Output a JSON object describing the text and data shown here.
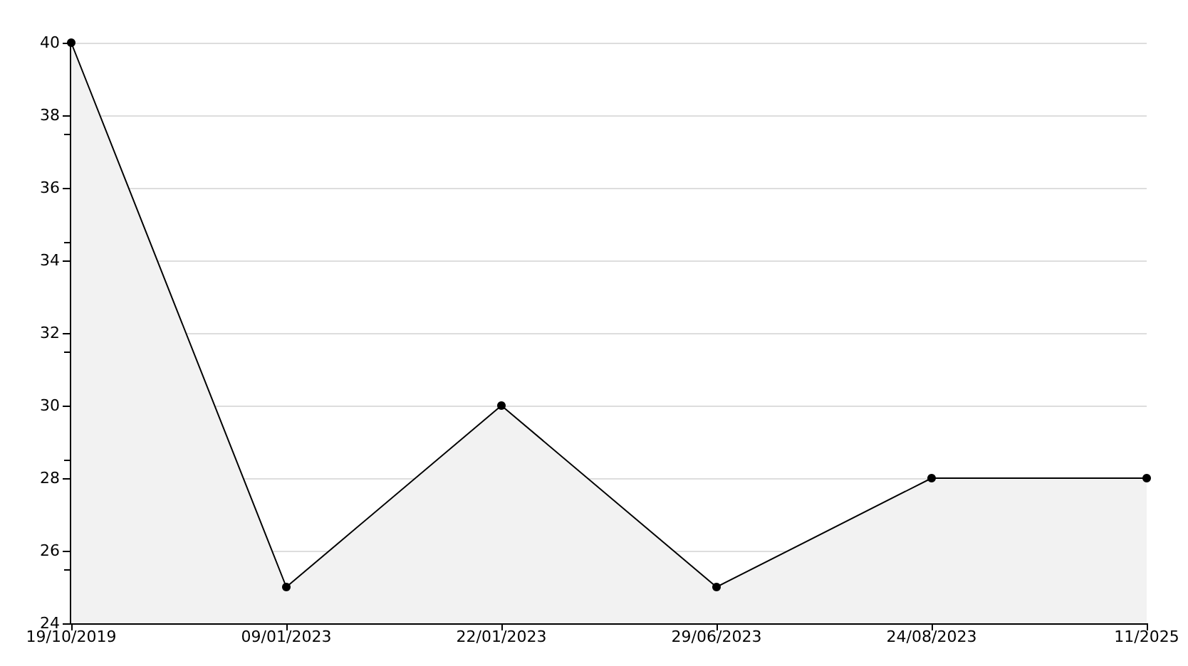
{
  "chart_data": {
    "type": "area",
    "categories": [
      "19/10/2019",
      "09/01/2023",
      "22/01/2023",
      "29/06/2023",
      "24/08/2023",
      "11/2025"
    ],
    "series": [
      {
        "color": "#000000",
        "values": [
          40,
          25,
          30,
          25,
          28,
          28
        ]
      }
    ],
    "ylim": [
      24,
      40
    ],
    "yticks": [
      24,
      26,
      28,
      30,
      32,
      34,
      36,
      38,
      40
    ],
    "grid": "y",
    "marker": "circle",
    "line_style": "solid"
  }
}
